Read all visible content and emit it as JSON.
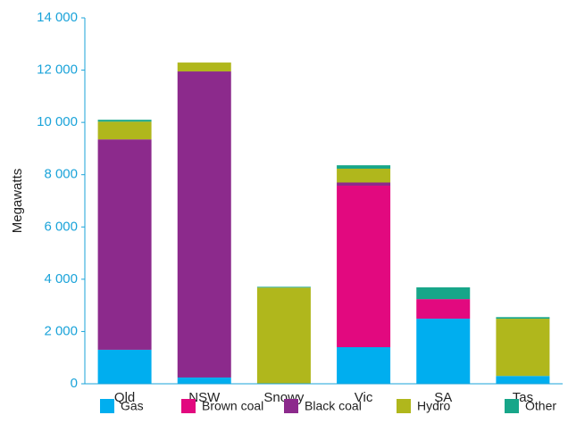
{
  "chart_data": {
    "type": "stacked_bar",
    "y_label": "Megawatts",
    "categories": [
      "Qld",
      "NSW",
      "Snowy",
      "Vic",
      "SA",
      "Tas"
    ],
    "series": [
      {
        "name": "Gas",
        "color": "#00aeef",
        "values": [
          1300,
          240,
          0,
          1400,
          2490,
          300
        ]
      },
      {
        "name": "Brown coal",
        "color": "#e2097f",
        "values": [
          0,
          0,
          0,
          6180,
          750,
          0
        ]
      },
      {
        "name": "Black coal",
        "color": "#8c2a8c",
        "values": [
          8050,
          11710,
          0,
          120,
          0,
          0
        ]
      },
      {
        "name": "Hydro",
        "color": "#b0b71c",
        "values": [
          680,
          340,
          3680,
          530,
          0,
          2190
        ]
      },
      {
        "name": "Other",
        "color": "#17a689",
        "values": [
          70,
          0,
          30,
          130,
          450,
          60
        ]
      }
    ],
    "ylim": [
      0,
      14000
    ],
    "yticks": [
      0,
      {
        "value": 2000,
        "label": "2 000"
      },
      {
        "value": 4000,
        "label": "4 000"
      },
      {
        "value": 6000,
        "label": "6 000"
      },
      {
        "value": 8000,
        "label": "8 000"
      },
      {
        "value": 10000,
        "label": "10 000"
      },
      {
        "value": 12000,
        "label": "12 000"
      },
      {
        "value": 14000,
        "label": "14 000"
      }
    ]
  }
}
